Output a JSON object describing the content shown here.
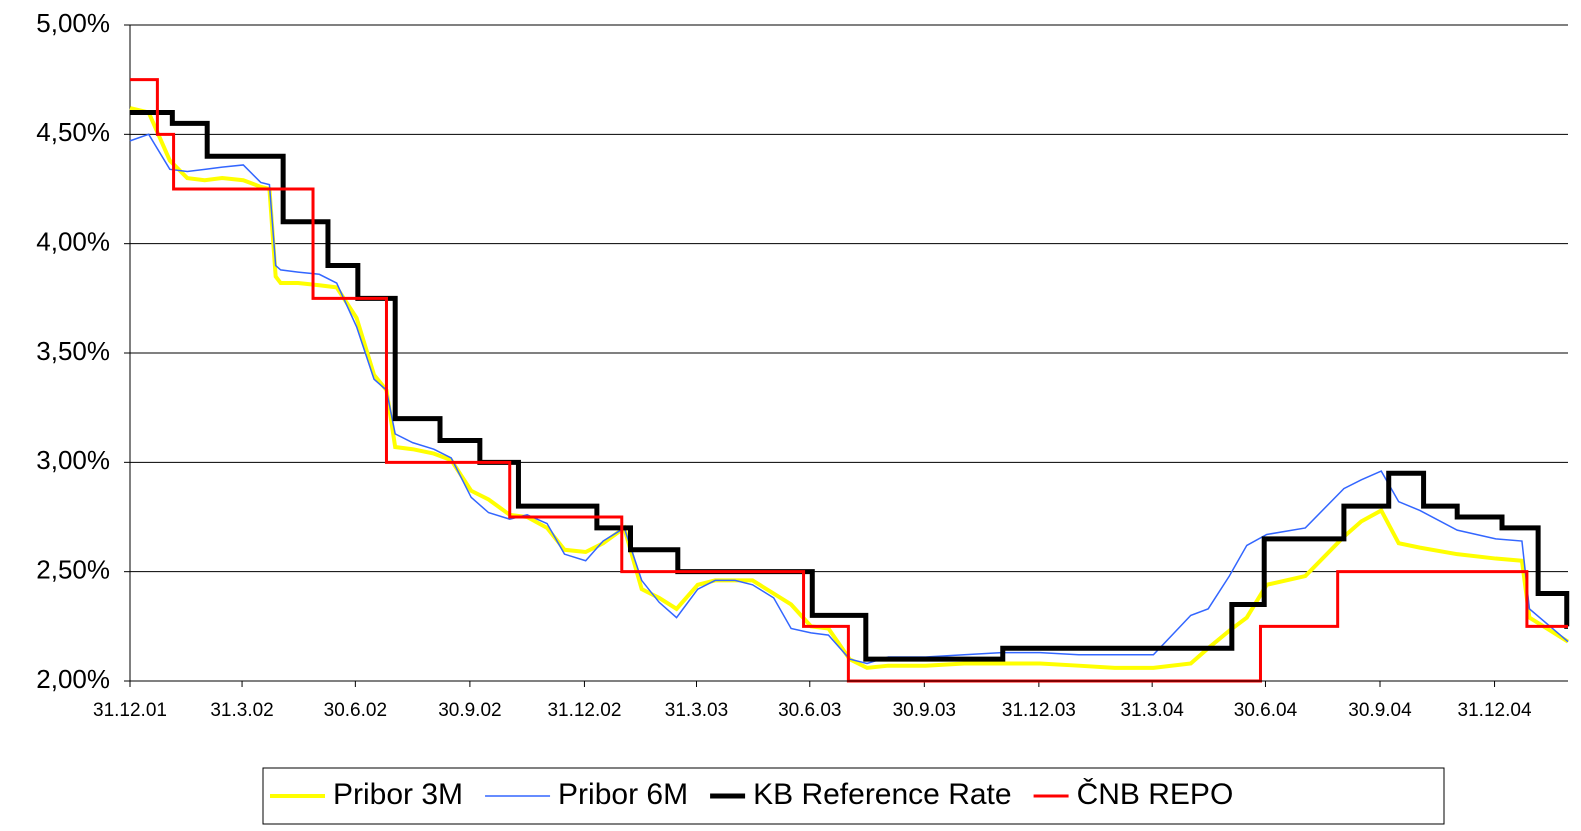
{
  "chart_data": {
    "type": "line",
    "xlim": [
      "2001-12-31",
      "2005-02-28"
    ],
    "xticks": [
      {
        "value": "2001-12-31",
        "label": "31.12.01"
      },
      {
        "value": "2002-03-31",
        "label": "31.3.02"
      },
      {
        "value": "2002-06-30",
        "label": "30.6.02"
      },
      {
        "value": "2002-09-30",
        "label": "30.9.02"
      },
      {
        "value": "2002-12-31",
        "label": "31.12.02"
      },
      {
        "value": "2003-03-31",
        "label": "31.3.03"
      },
      {
        "value": "2003-06-30",
        "label": "30.6.03"
      },
      {
        "value": "2003-09-30",
        "label": "30.9.03"
      },
      {
        "value": "2003-12-31",
        "label": "31.12.03"
      },
      {
        "value": "2004-03-31",
        "label": "31.3.04"
      },
      {
        "value": "2004-06-30",
        "label": "30.6.04"
      },
      {
        "value": "2004-09-30",
        "label": "30.9.04"
      },
      {
        "value": "2004-12-31",
        "label": "31.12.04"
      }
    ],
    "ylim": [
      2.0,
      5.0
    ],
    "yticks": [
      {
        "value": 2.0,
        "label": "2,00%"
      },
      {
        "value": 2.5,
        "label": "2,50%"
      },
      {
        "value": 3.0,
        "label": "3,00%"
      },
      {
        "value": 3.5,
        "label": "3,50%"
      },
      {
        "value": 4.0,
        "label": "4,00%"
      },
      {
        "value": 4.5,
        "label": "4,50%"
      },
      {
        "value": 5.0,
        "label": "5,00%"
      }
    ],
    "grid": true,
    "legend": "bottom",
    "x": [
      "2001-12-31",
      "2002-01-15",
      "2002-02-01",
      "2002-02-15",
      "2002-03-01",
      "2002-03-15",
      "2002-04-01",
      "2002-04-15",
      "2002-04-22",
      "2002-04-27",
      "2002-05-01",
      "2002-05-15",
      "2002-06-01",
      "2002-06-15",
      "2002-07-01",
      "2002-07-15",
      "2002-07-25",
      "2002-08-01",
      "2002-08-15",
      "2002-09-01",
      "2002-09-15",
      "2002-10-01",
      "2002-10-15",
      "2002-11-01",
      "2002-11-15",
      "2002-12-01",
      "2002-12-15",
      "2003-01-01",
      "2003-01-15",
      "2003-02-01",
      "2003-02-15",
      "2003-03-01",
      "2003-03-15",
      "2003-04-01",
      "2003-04-15",
      "2003-05-01",
      "2003-05-15",
      "2003-06-01",
      "2003-06-15",
      "2003-07-01",
      "2003-07-15",
      "2003-08-01",
      "2003-08-15",
      "2003-09-01",
      "2003-10-01",
      "2003-11-01",
      "2003-12-01",
      "2004-01-01",
      "2004-02-01",
      "2004-03-01",
      "2004-04-01",
      "2004-05-01",
      "2004-05-15",
      "2004-06-01",
      "2004-06-15",
      "2004-07-01",
      "2004-08-01",
      "2004-09-01",
      "2004-09-15",
      "2004-10-01",
      "2004-10-15",
      "2004-11-01",
      "2004-12-01",
      "2005-01-01",
      "2005-01-22",
      "2005-01-28",
      "2005-02-28"
    ],
    "series": [
      {
        "name": "Pribor 3M",
        "color": "#ffff00",
        "width": 4,
        "values": [
          4.62,
          4.6,
          4.38,
          4.3,
          4.29,
          4.3,
          4.29,
          4.26,
          4.25,
          3.85,
          3.82,
          3.82,
          3.81,
          3.8,
          3.66,
          3.4,
          3.33,
          3.07,
          3.06,
          3.04,
          3.01,
          2.87,
          2.83,
          2.76,
          2.75,
          2.7,
          2.6,
          2.59,
          2.63,
          2.7,
          2.42,
          2.38,
          2.33,
          2.44,
          2.46,
          2.46,
          2.46,
          2.4,
          2.35,
          2.25,
          2.24,
          2.1,
          2.06,
          2.07,
          2.07,
          2.08,
          2.08,
          2.08,
          2.07,
          2.06,
          2.06,
          2.08,
          2.15,
          2.23,
          2.29,
          2.44,
          2.48,
          2.66,
          2.73,
          2.78,
          2.63,
          2.61,
          2.58,
          2.56,
          2.55,
          2.29,
          2.18
        ]
      },
      {
        "name": "Pribor 6M",
        "color": "#3366ff",
        "width": 1.5,
        "values": [
          4.47,
          4.5,
          4.34,
          4.33,
          4.34,
          4.35,
          4.36,
          4.28,
          4.27,
          3.9,
          3.88,
          3.87,
          3.86,
          3.82,
          3.62,
          3.38,
          3.33,
          3.13,
          3.09,
          3.06,
          3.02,
          2.84,
          2.77,
          2.74,
          2.76,
          2.72,
          2.58,
          2.55,
          2.64,
          2.7,
          2.46,
          2.36,
          2.29,
          2.42,
          2.46,
          2.46,
          2.44,
          2.38,
          2.24,
          2.22,
          2.21,
          2.1,
          2.08,
          2.11,
          2.11,
          2.12,
          2.13,
          2.13,
          2.12,
          2.12,
          2.12,
          2.3,
          2.33,
          2.48,
          2.62,
          2.67,
          2.7,
          2.88,
          2.92,
          2.96,
          2.82,
          2.78,
          2.69,
          2.65,
          2.64,
          2.33,
          2.18
        ]
      },
      {
        "name": "KB Reference Rate",
        "color": "#000000",
        "width": 5,
        "x": [
          "2001-12-31",
          "2002-02-03",
          "2002-02-03",
          "2002-03-03",
          "2002-03-03",
          "2002-05-03",
          "2002-05-03",
          "2002-06-08",
          "2002-06-08",
          "2002-07-02",
          "2002-07-02",
          "2002-08-01",
          "2002-08-01",
          "2002-09-06",
          "2002-09-06",
          "2002-10-08",
          "2002-10-08",
          "2002-11-08",
          "2002-11-08",
          "2003-01-10",
          "2003-01-10",
          "2003-02-06",
          "2003-02-06",
          "2003-03-16",
          "2003-03-16",
          "2003-07-02",
          "2003-07-02",
          "2003-08-14",
          "2003-08-14",
          "2003-12-02",
          "2003-12-02",
          "2004-06-03",
          "2004-06-03",
          "2004-06-29",
          "2004-06-29",
          "2004-09-01",
          "2004-09-01",
          "2004-10-07",
          "2004-10-07",
          "2004-11-04",
          "2004-11-04",
          "2004-12-01",
          "2004-12-01",
          "2005-01-06",
          "2005-01-06",
          "2005-02-04",
          "2005-02-04",
          "2005-02-27",
          "2005-02-27",
          "2005-02-28"
        ],
        "values": [
          4.6,
          4.6,
          4.55,
          4.55,
          4.4,
          4.4,
          4.1,
          4.1,
          3.9,
          3.9,
          3.75,
          3.75,
          3.2,
          3.2,
          3.1,
          3.1,
          3.0,
          3.0,
          2.8,
          2.8,
          2.7,
          2.7,
          2.6,
          2.6,
          2.5,
          2.5,
          2.3,
          2.3,
          2.1,
          2.1,
          2.15,
          2.15,
          2.35,
          2.35,
          2.65,
          2.65,
          2.8,
          2.8,
          2.95,
          2.95,
          2.8,
          2.8,
          2.75,
          2.75,
          2.7,
          2.7,
          2.4,
          2.4,
          2.25,
          2.25
        ]
      },
      {
        "name": "ČNB REPO",
        "color": "#ff0000",
        "width": 3,
        "x": [
          "2001-12-31",
          "2002-01-22",
          "2002-01-22",
          "2002-02-04",
          "2002-02-04",
          "2002-05-27",
          "2002-05-27",
          "2002-07-25",
          "2002-07-25",
          "2002-11-01",
          "2002-11-01",
          "2003-01-30",
          "2003-01-30",
          "2003-06-25",
          "2003-06-25",
          "2003-07-31",
          "2003-07-31",
          "2004-06-26",
          "2004-06-26",
          "2004-08-27",
          "2004-08-27",
          "2005-01-26",
          "2005-01-26",
          "2005-02-28"
        ],
        "values": [
          4.75,
          4.75,
          4.5,
          4.5,
          4.25,
          4.25,
          3.75,
          3.75,
          3.0,
          3.0,
          2.75,
          2.75,
          2.5,
          2.5,
          2.25,
          2.25,
          2.0,
          2.0,
          2.25,
          2.25,
          2.5,
          2.5,
          2.25,
          2.25
        ]
      }
    ]
  }
}
